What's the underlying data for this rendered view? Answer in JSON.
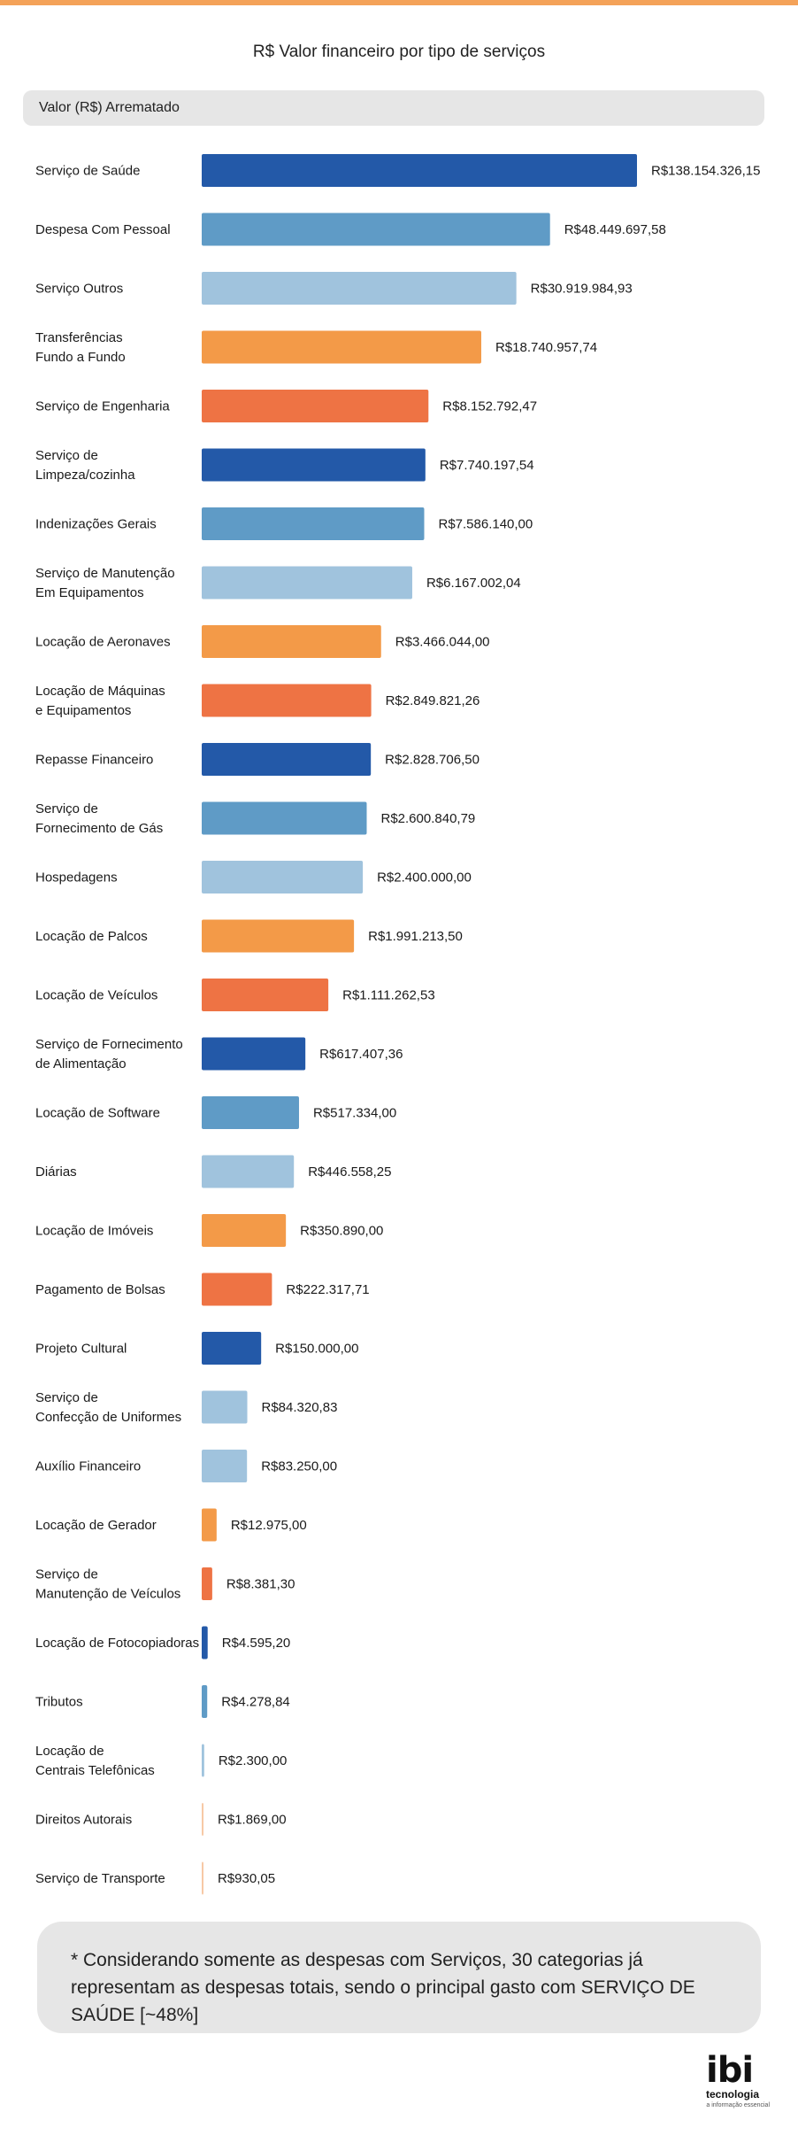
{
  "header": {
    "title": "R$ Valor financeiro por tipo de serviços",
    "column_label": "Valor (R$) Arrematado"
  },
  "footer": {
    "note": "* Considerando somente as despesas com Serviços, 30 categorias já representam as despesas totais, sendo o principal gasto com SERVIÇO DE SAÚDE [~48%]",
    "logo_text": "ibi",
    "logo_sub": "tecnologia",
    "logo_tagline": "a informação essencial"
  },
  "colors": {
    "dark_blue": "#2359a8",
    "mid_blue": "#5f9bc6",
    "light_blue": "#a0c3dd",
    "orange": "#f39a48",
    "coral": "#ee7344",
    "stripe": "#f4a259"
  },
  "chart_data": {
    "type": "bar",
    "orientation": "horizontal",
    "title": "R$ Valor financeiro por tipo de serviços",
    "categories": [
      [
        "Serviço de Saúde"
      ],
      [
        "Despesa Com Pessoal"
      ],
      [
        "Serviço Outros"
      ],
      [
        "Transferências",
        "Fundo a Fundo"
      ],
      [
        "Serviço de Engenharia"
      ],
      [
        "Serviço de",
        "Limpeza/cozinha"
      ],
      [
        "Indenizações Gerais"
      ],
      [
        "Serviço de Manutenção",
        "Em Equipamentos"
      ],
      [
        "Locação de Aeronaves"
      ],
      [
        "Locação de Máquinas",
        "e Equipamentos"
      ],
      [
        "Repasse Financeiro"
      ],
      [
        "Serviço de",
        "Fornecimento de Gás"
      ],
      [
        "Hospedagens"
      ],
      [
        "Locação de Palcos"
      ],
      [
        "Locação de Veículos"
      ],
      [
        "Serviço de Fornecimento",
        "de Alimentação"
      ],
      [
        "Locação de Software"
      ],
      [
        "Diárias"
      ],
      [
        "Locação de Imóveis"
      ],
      [
        "Pagamento de Bolsas"
      ],
      [
        "Projeto Cultural"
      ],
      [
        "Serviço de",
        "Confecção de Uniformes"
      ],
      [
        "Auxílio Financeiro"
      ],
      [
        "Locação de Gerador"
      ],
      [
        "Serviço de",
        "Manutenção de Veículos"
      ],
      [
        "Locação de Fotocopiadoras"
      ],
      [
        "Tributos"
      ],
      [
        "Locação de",
        "Centrais Telefônicas"
      ],
      [
        "Direitos Autorais"
      ],
      [
        "Serviço de Transporte"
      ]
    ],
    "values": [
      138154326.15,
      48449697.58,
      30919984.93,
      18740957.74,
      8152792.47,
      7740197.54,
      7586140.0,
      6167002.04,
      3466044.0,
      2849821.26,
      2828706.5,
      2600840.79,
      2400000.0,
      1991213.5,
      1111262.53,
      617407.36,
      517334.0,
      446558.25,
      350890.0,
      222317.71,
      150000.0,
      84320.83,
      83250.0,
      12975.0,
      8381.3,
      4595.2,
      4278.84,
      2300.0,
      1869.0,
      930.05
    ],
    "value_labels": [
      "R$138.154.326,15",
      "R$48.449.697,58",
      "R$30.919.984,93",
      "R$18.740.957,74",
      "R$8.152.792,47",
      "R$7.740.197,54",
      "R$7.586.140,00",
      "R$6.167.002,04",
      "R$3.466.044,00",
      "R$2.849.821,26",
      "R$2.828.706,50",
      "R$2.600.840,79",
      "R$2.400.000,00",
      "R$1.991.213,50",
      "R$1.111.262,53",
      "R$617.407,36",
      "R$517.334,00",
      "R$446.558,25",
      "R$350.890,00",
      "R$222.317,71",
      "R$150.000,00",
      "R$84.320,83",
      "R$83.250,00",
      "R$12.975,00",
      "R$8.381,30",
      "R$4.595,20",
      "R$4.278,84",
      "R$2.300,00",
      "R$1.869,00",
      "R$930,05"
    ],
    "bar_colors": [
      "#2359a8",
      "#5f9bc6",
      "#a0c3dd",
      "#f39a48",
      "#ee7344",
      "#2359a8",
      "#5f9bc6",
      "#a0c3dd",
      "#f39a48",
      "#ee7344",
      "#2359a8",
      "#5f9bc6",
      "#a0c3dd",
      "#f39a48",
      "#ee7344",
      "#2359a8",
      "#5f9bc6",
      "#a0c3dd",
      "#f39a48",
      "#ee7344",
      "#2359a8",
      "#a0c3dd",
      "#a0c3dd",
      "#f39a48",
      "#ee7344",
      "#2359a8",
      "#5f9bc6",
      "#a0c3dd",
      "#f7c9a6",
      "#f7c9a6"
    ],
    "scale": "log",
    "grid": false,
    "legend": "none"
  }
}
